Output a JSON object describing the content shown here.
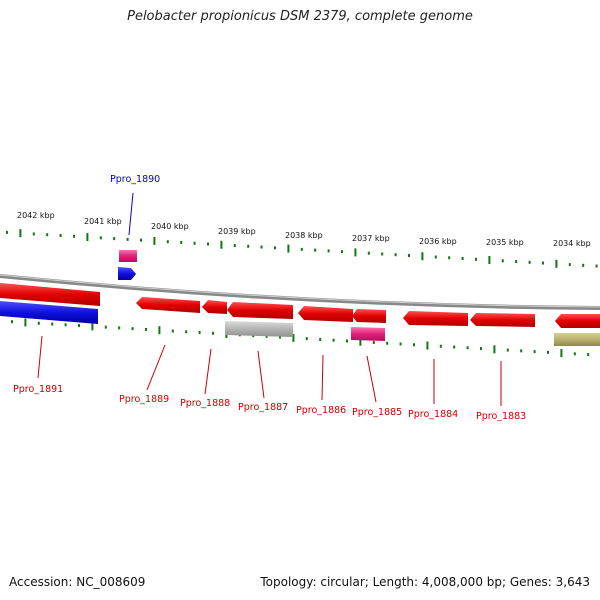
{
  "title": "Pelobacter propionicus DSM 2379, complete genome",
  "footer": {
    "accession": "Accession: NC_008609",
    "summary": "Topology: circular; Length: 4,008,000 bp; Genes: 3,643"
  },
  "colors": {
    "forward_gene": "#e00000",
    "reverse_gene": "#1010e0",
    "rna_pink": "#e0207a",
    "pseudo_gray": "#b0b0b0",
    "other_olive": "#b8b070",
    "tick_green": "#117711",
    "backbone": "#888888"
  },
  "scale_labels": [
    "2042 kbp",
    "2041 kbp",
    "2040 kbp",
    "2039 kbp",
    "2038 kbp",
    "2037 kbp",
    "2036 kbp",
    "2035 kbp",
    "2034 kbp"
  ],
  "gene_labels": [
    {
      "text": "Ppro_1890",
      "color": "#0000cc"
    },
    {
      "text": "Ppro_1891",
      "color": "#cc0000"
    },
    {
      "text": "Ppro_1889",
      "color": "#cc0000"
    },
    {
      "text": "Ppro_1888",
      "color": "#cc0000"
    },
    {
      "text": "Ppro_1887",
      "color": "#cc0000"
    },
    {
      "text": "Ppro_1886",
      "color": "#cc0000"
    },
    {
      "text": "Ppro_1885",
      "color": "#cc0000"
    },
    {
      "text": "Ppro_1884",
      "color": "#cc0000"
    },
    {
      "text": "Ppro_1883",
      "color": "#cc0000"
    }
  ]
}
